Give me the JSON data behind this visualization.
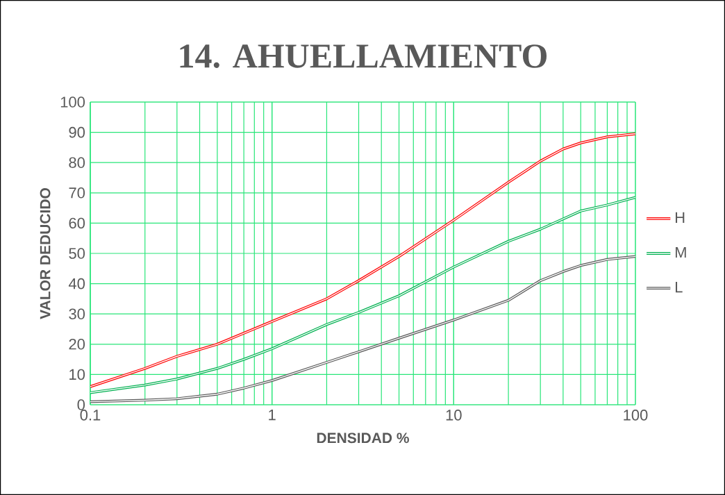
{
  "chart_data": {
    "type": "line",
    "title": "14. AHUELLAMIENTO",
    "xlabel": "DENSIDAD %",
    "ylabel": "VALOR DEDUCIDO",
    "log": "x",
    "xlim": [
      0.1,
      100
    ],
    "xticks": [
      0.1,
      1,
      10,
      100
    ],
    "ylim": [
      0,
      100
    ],
    "yticks": [
      0,
      10,
      20,
      30,
      40,
      50,
      60,
      70,
      80,
      90,
      100
    ],
    "grid": true,
    "legend": "right",
    "marker": "none",
    "line_style": "solid",
    "series": [
      {
        "name": "H",
        "color": "#ff0000",
        "x": [
          0.1,
          0.2,
          0.3,
          0.5,
          1,
          2,
          3,
          5,
          10,
          20,
          30,
          40,
          50,
          70,
          100
        ],
        "values": [
          6,
          12,
          16,
          20,
          27.5,
          35,
          41,
          49,
          61,
          73.5,
          80.5,
          84.5,
          86.5,
          88.5,
          89.5
        ]
      },
      {
        "name": "M",
        "color": "#00b050",
        "x": [
          0.1,
          0.2,
          0.3,
          0.5,
          0.7,
          1,
          2,
          3,
          5,
          10,
          20,
          30,
          50,
          70,
          100
        ],
        "values": [
          4,
          6.5,
          8.5,
          12,
          15,
          18.5,
          26.5,
          30.5,
          36,
          45.5,
          54,
          58,
          64,
          66,
          68.5
        ]
      },
      {
        "name": "L",
        "color": "#595959",
        "x": [
          0.1,
          0.2,
          0.3,
          0.5,
          0.7,
          1,
          2,
          3,
          5,
          10,
          20,
          30,
          40,
          50,
          70,
          100
        ],
        "values": [
          1,
          1.5,
          2,
          3.5,
          5.5,
          8,
          14,
          17.5,
          22,
          28,
          34.5,
          41,
          44,
          46,
          48,
          49
        ]
      }
    ]
  }
}
